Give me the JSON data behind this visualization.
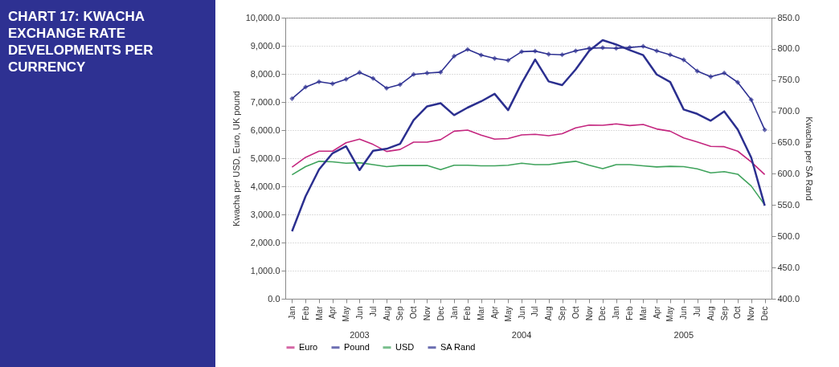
{
  "chart_data": {
    "type": "line",
    "title": "CHART 17: KWACHA EXCHANGE RATE DEVELOPMENTS PER CURRENCY",
    "ylabel": "Kwacha per USD, Euro, UK pound",
    "y2label": "Kwacha per SA Rand",
    "categories": [
      "Jan",
      "Feb",
      "Mar",
      "Apr",
      "May",
      "Jun",
      "Jul",
      "Aug",
      "Sep",
      "Oct",
      "Nov",
      "Dec",
      "Jan",
      "Feb",
      "Mar",
      "Apr",
      "May",
      "Jun",
      "Jul",
      "Aug",
      "Sep",
      "Oct",
      "Nov",
      "Dec",
      "Jan",
      "Feb",
      "Mar",
      "Apr",
      "May",
      "Jun",
      "Jul",
      "Aug",
      "Sep",
      "Oct",
      "Nov",
      "Dec"
    ],
    "annotations": [
      "2003",
      "2004",
      "2005"
    ],
    "series": [
      {
        "name": "Euro",
        "color": "#c4267f",
        "values": [
          4680,
          5030,
          5250,
          5250,
          5550,
          5680,
          5490,
          5240,
          5310,
          5570,
          5570,
          5660,
          5960,
          6000,
          5820,
          5680,
          5700,
          5830,
          5850,
          5800,
          5870,
          6080,
          6180,
          6170,
          6220,
          6160,
          6200,
          6040,
          5960,
          5720,
          5580,
          5420,
          5410,
          5250,
          4870,
          4420
        ]
      },
      {
        "name": "Pound",
        "color": "#2e3192",
        "marker": "diamond",
        "values": [
          7120,
          7530,
          7720,
          7650,
          7810,
          8050,
          7840,
          7490,
          7620,
          7980,
          8030,
          8060,
          8630,
          8870,
          8670,
          8550,
          8480,
          8790,
          8810,
          8700,
          8680,
          8820,
          8910,
          8930,
          8910,
          8940,
          8980,
          8820,
          8680,
          8500,
          8100,
          7900,
          8030,
          7700,
          7080,
          6010
        ]
      },
      {
        "name": "USD",
        "color": "#3fa35c",
        "values": [
          4410,
          4700,
          4890,
          4870,
          4820,
          4840,
          4770,
          4700,
          4740,
          4740,
          4740,
          4590,
          4750,
          4750,
          4730,
          4730,
          4750,
          4820,
          4770,
          4770,
          4840,
          4890,
          4750,
          4630,
          4770,
          4770,
          4730,
          4690,
          4710,
          4700,
          4620,
          4480,
          4520,
          4430,
          4010,
          3340
        ]
      },
      {
        "name": "SA Rand",
        "color": "#2b2f8f",
        "axis": "y2",
        "values": [
          508,
          564,
          607,
          633,
          644,
          606,
          637,
          640,
          648,
          686,
          708,
          713,
          694,
          706,
          716,
          728,
          702,
          745,
          783,
          748,
          742,
          767,
          797,
          814,
          807,
          798,
          790,
          759,
          747,
          703,
          696,
          685,
          700,
          671,
          626,
          549
        ]
      }
    ],
    "ylim": [
      0,
      10000
    ],
    "yticks": [
      {
        "value": 0,
        "label": "0.0"
      },
      {
        "value": 1000,
        "label": "1,000.0"
      },
      {
        "value": 2000,
        "label": "2,000.0"
      },
      {
        "value": 3000,
        "label": "3,000.0"
      },
      {
        "value": 4000,
        "label": "4,000.0"
      },
      {
        "value": 5000,
        "label": "5,000.0"
      },
      {
        "value": 6000,
        "label": "6,000.0"
      },
      {
        "value": 7000,
        "label": "7,000.0"
      },
      {
        "value": 8000,
        "label": "8,000.0"
      },
      {
        "value": 9000,
        "label": "9,000.0"
      },
      {
        "value": 10000,
        "label": "10,000.0"
      }
    ],
    "y2lim": [
      400,
      850
    ],
    "y2ticks": [
      {
        "value": 400,
        "label": "400.0"
      },
      {
        "value": 450,
        "label": "450.0"
      },
      {
        "value": 500,
        "label": "500.0"
      },
      {
        "value": 550,
        "label": "550.0"
      },
      {
        "value": 600,
        "label": "600.0"
      },
      {
        "value": 650,
        "label": "650.0"
      },
      {
        "value": 700,
        "label": "700.0"
      },
      {
        "value": 750,
        "label": "750.0"
      },
      {
        "value": 800,
        "label": "800.0"
      },
      {
        "value": 850,
        "label": "850.0"
      }
    ],
    "grid": "y",
    "legend": "bottom",
    "line_style": "solid"
  }
}
